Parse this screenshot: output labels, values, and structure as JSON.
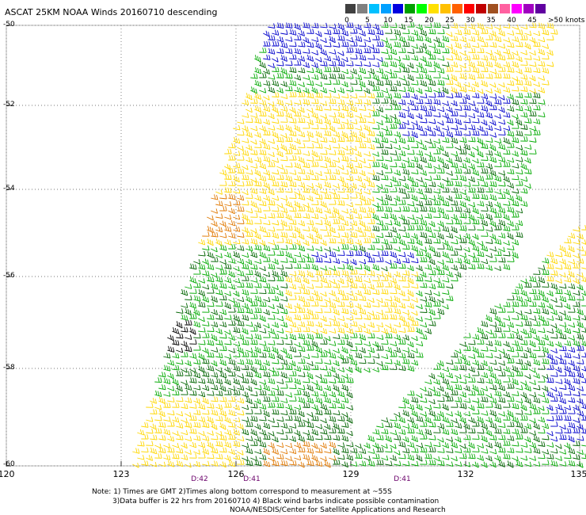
{
  "title": "ASCAT 25KM NOAA Winds 20160710 descending",
  "legend": {
    "colors": [
      "#404040",
      "#808080",
      "#00c0ff",
      "#00a0ff",
      "#0000e0",
      "#00a000",
      "#00ff00",
      "#ffe000",
      "#ffc000",
      "#ff6000",
      "#ff0000",
      "#c00000",
      "#a05020",
      "#ff60a0",
      "#ff00ff",
      "#a000c0",
      "#6000a0"
    ],
    "ticks": [
      "0",
      "5",
      "10",
      "15",
      "20",
      "25",
      "30",
      "35",
      "40",
      "45"
    ],
    "unit": ">50 knots",
    "icon": "wind-speed-color-scale"
  },
  "map": {
    "latitude_labels": [
      "-50",
      "-52",
      "-54",
      "-56",
      "-58",
      "-60"
    ],
    "longitude_labels": [
      "120",
      "123",
      "126",
      "129",
      "132",
      "135"
    ],
    "lat_range": [
      -60,
      -50
    ],
    "lon_range": [
      120,
      135
    ],
    "grid": "dotted",
    "pass_times": [
      "D:42",
      "D:41",
      "D:41"
    ],
    "barb_colors": {
      "blue": "#0000cc",
      "green": "#00aa00",
      "dark_green": "#006400",
      "yellow": "#ffd700",
      "orange": "#e07800",
      "black": "#000000"
    }
  },
  "notes": {
    "line1": "Note: 1) Times are GMT 2)Times along bottom correspond to measurement at ~55S",
    "line2": "3)Data buffer is 22 hrs from 20160710 4) Black wind barbs indicate possible contamination",
    "line3": "NOAA/NESDIS/Center for Satellite Applications and Research"
  }
}
